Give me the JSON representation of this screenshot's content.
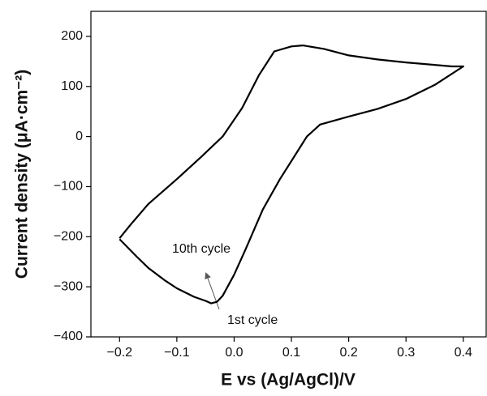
{
  "chart_data": {
    "type": "line",
    "x_label": "E vs (Ag/AgCl)/V",
    "y_label": "Current density (μA·cm⁻²)",
    "x": [
      -0.2,
      -0.17,
      -0.15,
      -0.12,
      -0.1,
      -0.07,
      -0.05,
      -0.04,
      -0.03,
      -0.02,
      0.0,
      0.02,
      0.05,
      0.08,
      0.1,
      0.127,
      0.15,
      0.2,
      0.25,
      0.3,
      0.35,
      0.4,
      0.38,
      0.3,
      0.25,
      0.2,
      0.157,
      0.12,
      0.1,
      0.07,
      0.043,
      0.014,
      -0.02,
      -0.057,
      -0.1,
      -0.15,
      -0.18,
      -0.2
    ],
    "values": [
      -205,
      -240,
      -262,
      -288,
      -303,
      -320,
      -328,
      -333,
      -330,
      -318,
      -276,
      -225,
      -146,
      -85,
      -49,
      0,
      24,
      40,
      55,
      75,
      103,
      140,
      140,
      148,
      154,
      162,
      175,
      182,
      180,
      170,
      122,
      57,
      0,
      -40,
      -85,
      -135,
      -175,
      -203
    ],
    "color": "#000000",
    "xlim": [
      -0.25,
      0.44
    ],
    "ylim": [
      -400,
      250
    ],
    "xticks": [
      {
        "value": -0.2,
        "label": "−0.2"
      },
      {
        "value": -0.1,
        "label": "−0.1"
      },
      {
        "value": 0,
        "label": "0.0"
      },
      0.1,
      0.2,
      0.3,
      0.4
    ],
    "yticks": [
      {
        "value": -400,
        "label": "−400"
      },
      {
        "value": -300,
        "label": "−300"
      },
      {
        "value": -200,
        "label": "−200"
      },
      {
        "value": -100,
        "label": "−100"
      },
      0,
      100,
      200
    ],
    "annotations": [
      "10th cycle",
      "1st cycle"
    ],
    "grid": false
  }
}
